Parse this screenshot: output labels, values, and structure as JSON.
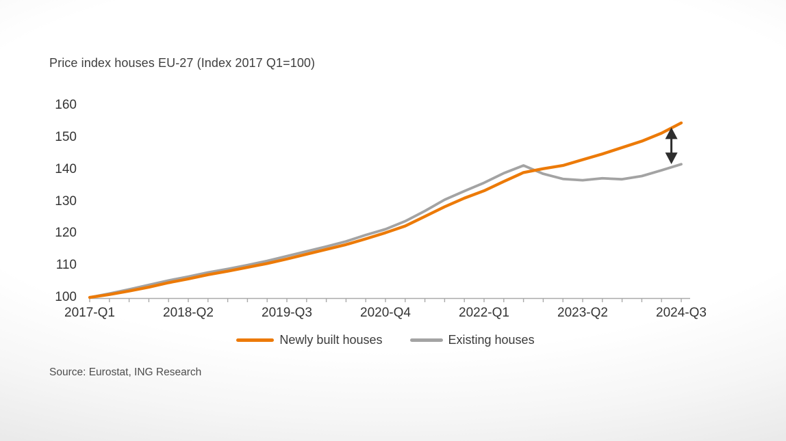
{
  "title": "Price index houses EU-27 (Index 2017 Q1=100)",
  "source": "Source: Eurostat, ING Research",
  "colors": {
    "newly_built": "#EC7A08",
    "existing": "#A3A3A3",
    "axis": "#A9A9A9",
    "text": "#3f3f3f",
    "arrow": "#2e2e2e"
  },
  "legend": [
    {
      "key": "newly_built",
      "label": "Newly built houses",
      "color": "#EC7A08",
      "swatch_width": 55
    },
    {
      "key": "existing",
      "label": "Existing houses",
      "color": "#A3A3A3",
      "swatch_width": 48
    }
  ],
  "chart_data": {
    "type": "line",
    "title": "Price index houses EU-27 (Index 2017 Q1=100)",
    "xlabel": "",
    "ylabel": "",
    "ylim": [
      100,
      160
    ],
    "grid": false,
    "legend_position": "bottom-center",
    "y_ticks": [
      100,
      110,
      120,
      130,
      140,
      150,
      160
    ],
    "x_tick_labels": [
      "2017-Q1",
      "2018-Q2",
      "2019-Q3",
      "2020-Q4",
      "2022-Q1",
      "2023-Q2",
      "2024-Q3"
    ],
    "x_tick_indices": [
      0,
      5,
      10,
      15,
      20,
      25,
      30
    ],
    "categories": [
      "2017-Q1",
      "2017-Q2",
      "2017-Q3",
      "2017-Q4",
      "2018-Q1",
      "2018-Q2",
      "2018-Q3",
      "2018-Q4",
      "2019-Q1",
      "2019-Q2",
      "2019-Q3",
      "2019-Q4",
      "2020-Q1",
      "2020-Q2",
      "2020-Q3",
      "2020-Q4",
      "2021-Q1",
      "2021-Q2",
      "2021-Q3",
      "2021-Q4",
      "2022-Q1",
      "2022-Q2",
      "2022-Q3",
      "2022-Q4",
      "2023-Q1",
      "2023-Q2",
      "2023-Q3",
      "2023-Q4",
      "2024-Q1",
      "2024-Q2",
      "2024-Q3"
    ],
    "series": [
      {
        "name": "Existing houses",
        "color": "#A3A3A3",
        "values": [
          100,
          101.2,
          102.5,
          103.9,
          105.3,
          106.5,
          107.8,
          108.9,
          110.1,
          111.4,
          112.9,
          114.4,
          115.9,
          117.5,
          119.5,
          121.3,
          123.8,
          127.0,
          130.5,
          133.2,
          135.8,
          138.8,
          141.2,
          138.6,
          137.0,
          136.6,
          137.2,
          136.9,
          137.9,
          139.7,
          141.6
        ]
      },
      {
        "name": "Newly built houses",
        "color": "#EC7A08",
        "values": [
          100,
          100.9,
          102.0,
          103.2,
          104.6,
          105.8,
          107.1,
          108.2,
          109.4,
          110.6,
          112.0,
          113.5,
          115.0,
          116.5,
          118.3,
          120.2,
          122.3,
          125.3,
          128.3,
          131.0,
          133.3,
          136.2,
          139.0,
          140.2,
          141.2,
          143.0,
          144.8,
          146.8,
          148.8,
          151.3,
          154.5
        ]
      }
    ],
    "annotation": {
      "type": "double-arrow",
      "description": "vertical gap arrow between newly built and existing houses lines at right end",
      "x_index": 29.5,
      "value_top": 153.1,
      "value_bottom": 141.6
    }
  }
}
